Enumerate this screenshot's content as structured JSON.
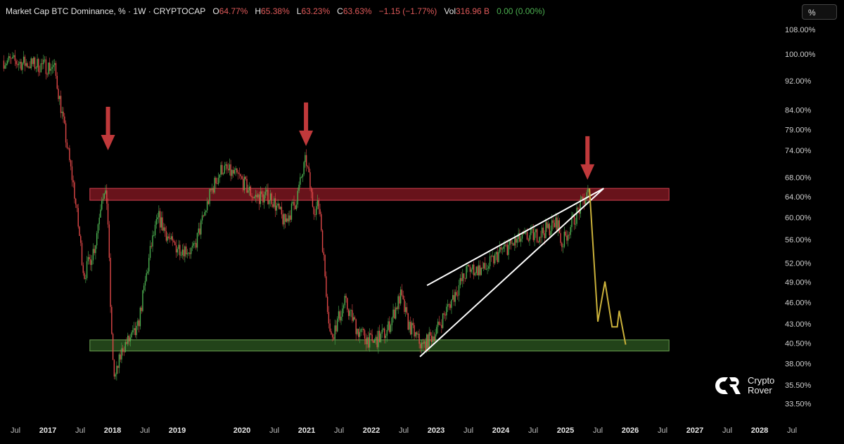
{
  "header": {
    "symbol": "Market Cap BTC Dominance, % · 1W · CRYPTOCAP",
    "open_label": "O",
    "open": "64.77%",
    "high_label": "H",
    "high": "65.38%",
    "low_label": "L",
    "low": "63.23%",
    "close_label": "C",
    "close": "63.63%",
    "change": "−1.15 (−1.77%)",
    "vol_label": "Vol",
    "vol": "316.96 B",
    "vol_change": "0.00 (0.00%)"
  },
  "unit_button": "%",
  "logo": {
    "line1": "Crypto",
    "line2": "Rover"
  },
  "colors": {
    "up": "#4caf50",
    "down": "#e04848",
    "resistance_zone": "#8b1a24",
    "support_zone": "#2e5a22",
    "projection": "#c9b03a",
    "arrow": "#c0393b",
    "trendline": "#ffffff"
  },
  "chart_data": {
    "type": "candlestick",
    "title": "Market Cap BTC Dominance, % · 1W · CRYPTOCAP",
    "y_scale": "log",
    "ylim": [
      33.0,
      112.0
    ],
    "y_ticks": [
      "108.00%",
      "100.00%",
      "92.00%",
      "84.00%",
      "79.00%",
      "74.00%",
      "68.00%",
      "64.00%",
      "60.00%",
      "56.00%",
      "52.00%",
      "49.00%",
      "46.00%",
      "43.00%",
      "40.50%",
      "38.00%",
      "35.50%",
      "33.50%"
    ],
    "x_ticks": [
      {
        "label": "Jul",
        "date": 2016.5,
        "year": false
      },
      {
        "label": "2017",
        "date": 2017.0,
        "year": true
      },
      {
        "label": "Jul",
        "date": 2017.5,
        "year": false
      },
      {
        "label": "2018",
        "date": 2018.0,
        "year": true
      },
      {
        "label": "Jul",
        "date": 2018.5,
        "year": false
      },
      {
        "label": "2019",
        "date": 2019.0,
        "year": true
      },
      {
        "label": "2020",
        "date": 2020.0,
        "year": true
      },
      {
        "label": "Jul",
        "date": 2020.5,
        "year": false
      },
      {
        "label": "2021",
        "date": 2021.0,
        "year": true
      },
      {
        "label": "Jul",
        "date": 2021.5,
        "year": false
      },
      {
        "label": "2022",
        "date": 2022.0,
        "year": true
      },
      {
        "label": "Jul",
        "date": 2022.5,
        "year": false
      },
      {
        "label": "2023",
        "date": 2023.0,
        "year": true
      },
      {
        "label": "Jul",
        "date": 2023.5,
        "year": false
      },
      {
        "label": "2024",
        "date": 2024.0,
        "year": true
      },
      {
        "label": "Jul",
        "date": 2024.5,
        "year": false
      },
      {
        "label": "2025",
        "date": 2025.0,
        "year": true
      },
      {
        "label": "Jul",
        "date": 2025.5,
        "year": false
      },
      {
        "label": "2026",
        "date": 2026.0,
        "year": true
      },
      {
        "label": "Jul",
        "date": 2026.5,
        "year": false
      },
      {
        "label": "2027",
        "date": 2027.0,
        "year": true
      },
      {
        "label": "Jul",
        "date": 2027.5,
        "year": false
      },
      {
        "label": "2028",
        "date": 2028.0,
        "year": true
      },
      {
        "label": "Jul",
        "date": 2028.5,
        "year": false
      }
    ],
    "xlim": [
      2016.3,
      2028.7
    ],
    "price_path": [
      [
        2016.32,
        98
      ],
      [
        2017.1,
        96
      ],
      [
        2017.2,
        85
      ],
      [
        2017.35,
        70
      ],
      [
        2017.4,
        66
      ],
      [
        2017.56,
        50
      ],
      [
        2017.73,
        55
      ],
      [
        2017.84,
        65
      ],
      [
        2017.92,
        63
      ],
      [
        2017.98,
        42
      ],
      [
        2018.03,
        36
      ],
      [
        2018.16,
        40
      ],
      [
        2018.38,
        42
      ],
      [
        2018.6,
        55
      ],
      [
        2018.71,
        60
      ],
      [
        2018.92,
        55
      ],
      [
        2019.25,
        54
      ],
      [
        2019.52,
        65
      ],
      [
        2019.69,
        70
      ],
      [
        2019.96,
        68
      ],
      [
        2020.18,
        64
      ],
      [
        2020.45,
        64
      ],
      [
        2020.66,
        59
      ],
      [
        2020.83,
        63
      ],
      [
        2020.99,
        72
      ],
      [
        2021.1,
        62
      ],
      [
        2021.2,
        62
      ],
      [
        2021.3,
        48
      ],
      [
        2021.37,
        41
      ],
      [
        2021.59,
        46
      ],
      [
        2021.8,
        42
      ],
      [
        2022.02,
        40.5
      ],
      [
        2022.24,
        42
      ],
      [
        2022.45,
        47
      ],
      [
        2022.57,
        43
      ],
      [
        2022.79,
        40
      ],
      [
        2023.0,
        42
      ],
      [
        2023.22,
        46
      ],
      [
        2023.49,
        51
      ],
      [
        2023.76,
        51
      ],
      [
        2024.0,
        54
      ],
      [
        2024.3,
        56
      ],
      [
        2024.6,
        57
      ],
      [
        2024.88,
        59
      ],
      [
        2024.94,
        55
      ],
      [
        2025.1,
        59
      ],
      [
        2025.27,
        63
      ],
      [
        2025.36,
        65
      ]
    ],
    "resistance_zone": {
      "from": 2017.65,
      "to": 2026.6,
      "low": 63.3,
      "high": 65.7
    },
    "support_zone": {
      "from": 2017.65,
      "to": 2026.6,
      "low": 39.5,
      "high": 40.9
    },
    "trendlines": [
      {
        "from": [
          2022.86,
          48.5
        ],
        "to": [
          2025.59,
          65.7
        ]
      },
      {
        "from": [
          2022.75,
          38.8
        ],
        "to": [
          2025.59,
          65.7
        ]
      }
    ],
    "projection": [
      [
        2025.37,
        65.7
      ],
      [
        2025.5,
        43.3
      ],
      [
        2025.61,
        49.1
      ],
      [
        2025.72,
        42.6
      ],
      [
        2025.8,
        42.6
      ],
      [
        2025.83,
        44.8
      ],
      [
        2025.93,
        40.3
      ]
    ],
    "arrows": [
      {
        "date": 2017.93,
        "value": 74
      },
      {
        "date": 2020.99,
        "value": 75
      },
      {
        "date": 2025.34,
        "value": 67.5
      }
    ]
  }
}
